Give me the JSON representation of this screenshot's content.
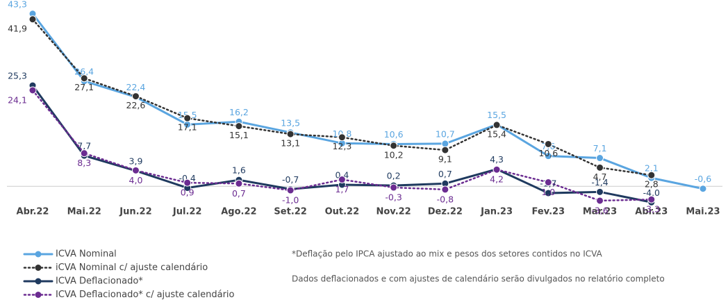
{
  "chart_data": {
    "type": "line",
    "categories": [
      "Abr.22",
      "Mai.22",
      "Jun.22",
      "Jul.22",
      "Ago.22",
      "Set.22",
      "Out.22",
      "Nov.22",
      "Dez.22",
      "Jan.23",
      "Fev.23",
      "Mar.23",
      "Abr.23",
      "Mai.23"
    ],
    "ylim": [
      -5,
      45
    ],
    "series": [
      {
        "name": "ICVA Nominal",
        "color": "#5aa5e0",
        "dash": "solid",
        "values": [
          43.3,
          26.4,
          22.4,
          15.5,
          16.2,
          13.5,
          10.8,
          10.6,
          10.7,
          15.5,
          7.6,
          7.1,
          2.1,
          -0.6
        ],
        "value_labels": [
          "43,3",
          "26,4",
          "22,4",
          "15,5",
          "16,2",
          "13,5",
          "10,8",
          "10,6",
          "10,7",
          "15,5",
          "7,6",
          "7,1",
          "2,1",
          "-0,6"
        ]
      },
      {
        "name": "iCVA Nominal c/ ajuste calendário",
        "color": "#333333",
        "dash": "dotted",
        "values": [
          41.9,
          27.1,
          22.6,
          17.1,
          15.1,
          13.1,
          12.3,
          10.2,
          9.1,
          15.4,
          10.6,
          4.7,
          2.8,
          null
        ],
        "value_labels": [
          "41,9",
          "27,1",
          "22,6",
          "17,1",
          "15,1",
          "13,1",
          "12,3",
          "10,2",
          "9,1",
          "15,4",
          "10,6",
          "4,7",
          "2,8",
          null
        ]
      },
      {
        "name": "ICVA Deflacionado*",
        "color": "#1f3a5f",
        "dash": "solid",
        "values": [
          25.3,
          7.7,
          3.9,
          -0.4,
          1.6,
          -0.7,
          0.4,
          0.2,
          0.7,
          4.3,
          -1.7,
          -1.4,
          -4.0,
          null
        ],
        "value_labels": [
          "25,3",
          "7,7",
          "3,9",
          "-0,4",
          "1,6",
          "-0,7",
          "0,4",
          "0,2",
          "0,7",
          "4,3",
          "-1,7",
          "-1,4",
          "-4,0",
          null
        ]
      },
      {
        "name": "ICVA Deflacionado* c/ ajuste calendário",
        "color": "#6b2c91",
        "dash": "dotted",
        "values": [
          24.1,
          8.3,
          4.0,
          0.9,
          0.7,
          -1.0,
          1.7,
          -0.3,
          -0.8,
          4.2,
          1.0,
          -3.6,
          -3.3,
          null
        ],
        "value_labels": [
          "24,1",
          "8,3",
          "4,0",
          "0,9",
          "0,7",
          "-1,0",
          "1,7",
          "-0,3",
          "-0,8",
          "4,2",
          "1,0",
          "-3,6",
          "-3,3",
          null
        ]
      }
    ],
    "notes": [
      "*Deflação pelo IPCA ajustado ao mix e pesos dos setores contidos no ICVA",
      "Dados deflacionados e com ajustes de calendário serão divulgados no relatório completo"
    ]
  }
}
